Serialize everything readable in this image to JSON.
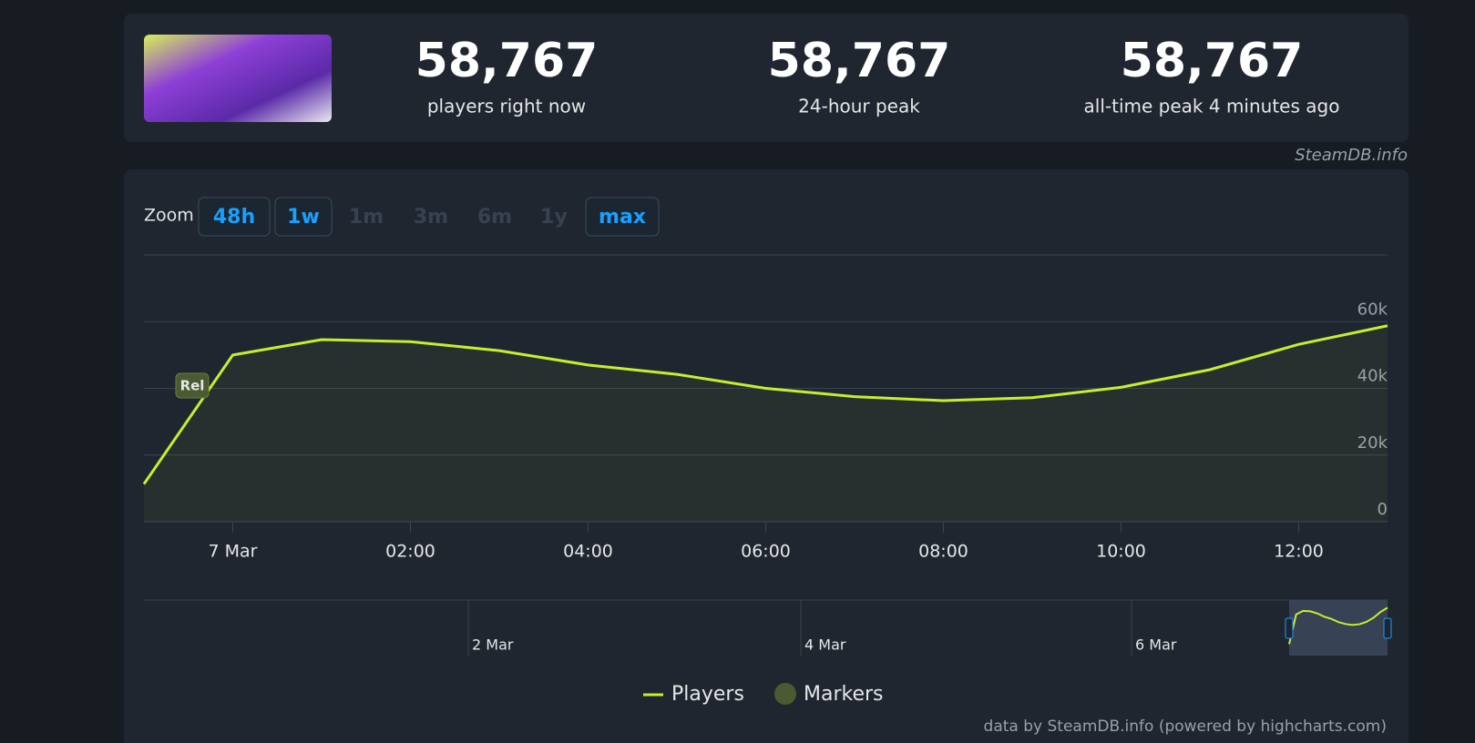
{
  "header": {
    "stats": [
      {
        "value": "58,767",
        "label": "players right now"
      },
      {
        "value": "58,767",
        "label": "24-hour peak"
      },
      {
        "value": "58,767",
        "label": "all-time peak 4 minutes ago"
      }
    ],
    "source": "SteamDB.info"
  },
  "zoom": {
    "label": "Zoom",
    "buttons": [
      {
        "label": "48h",
        "active": true
      },
      {
        "label": "1w",
        "active": true
      },
      {
        "label": "1m",
        "active": false
      },
      {
        "label": "3m",
        "active": false
      },
      {
        "label": "6m",
        "active": false
      },
      {
        "label": "1y",
        "active": false
      },
      {
        "label": "max",
        "active": true
      }
    ]
  },
  "chart_data": {
    "type": "line",
    "categories": [
      null,
      "7 Mar",
      null,
      "02:00",
      null,
      "04:00",
      null,
      "06:00",
      null,
      "08:00",
      null,
      "10:00",
      null,
      "12:00",
      null
    ],
    "series": [
      {
        "name": "Players",
        "color": "#c4ef2f",
        "values": [
          11300,
          50000,
          54600,
          54000,
          51300,
          47000,
          44200,
          40000,
          37500,
          36300,
          37200,
          40300,
          45600,
          53200,
          58767
        ]
      }
    ],
    "markers": {
      "name": "Markers",
      "color": "#4b5a30",
      "labels": [
        "Rel"
      ]
    },
    "ylim": [
      0,
      80000
    ],
    "yticks": [
      {
        "value": 0,
        "label": "0"
      },
      {
        "value": 20000,
        "label": "20k"
      },
      {
        "value": 40000,
        "label": "40k"
      },
      {
        "value": 60000,
        "label": "60k"
      }
    ],
    "grid": true,
    "navigator": {
      "labels": [
        "2 Mar",
        "4 Mar",
        "6 Mar"
      ]
    },
    "credits": "data by SteamDB.info (powered by highcharts.com)"
  }
}
